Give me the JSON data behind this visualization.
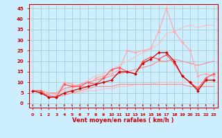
{
  "bg_color": "#cceeff",
  "grid_color": "#aacccc",
  "xlabel": "Vent moyen/en rafales ( km/h )",
  "x": [
    0,
    1,
    2,
    3,
    4,
    5,
    6,
    7,
    8,
    9,
    10,
    11,
    12,
    13,
    14,
    15,
    16,
    17,
    18,
    19,
    20,
    21,
    22,
    23
  ],
  "ylim": [
    -2,
    47
  ],
  "xlim": [
    -0.5,
    23.5
  ],
  "series": [
    {
      "y": [
        6,
        6,
        5,
        5,
        6,
        7,
        9,
        11,
        13,
        14,
        16,
        18,
        20,
        22,
        24,
        26,
        28,
        33,
        34,
        36,
        37,
        36,
        37,
        37
      ],
      "color": "#ffbbbb",
      "lw": 0.8,
      "marker": null,
      "ms": 0
    },
    {
      "y": [
        6,
        5,
        4,
        3,
        4,
        5,
        5,
        6,
        6,
        7,
        7,
        8,
        8,
        9,
        9,
        9,
        10,
        10,
        10,
        10,
        10,
        10,
        10,
        10
      ],
      "color": "#ffbbbb",
      "lw": 0.8,
      "marker": null,
      "ms": 0
    },
    {
      "y": [
        6,
        6,
        5,
        5,
        7,
        8,
        9,
        10,
        11,
        12,
        13,
        14,
        15,
        16,
        17,
        18,
        20,
        20,
        21,
        20,
        19,
        18,
        19,
        20
      ],
      "color": "#ff8888",
      "lw": 0.8,
      "marker": null,
      "ms": 0
    },
    {
      "y": [
        6,
        5,
        4,
        3,
        4,
        5,
        6,
        7,
        8,
        8,
        8,
        9,
        9,
        9,
        9,
        9,
        9,
        9,
        9,
        9,
        8,
        8,
        8,
        8
      ],
      "color": "#ff8888",
      "lw": 0.8,
      "marker": null,
      "ms": 0
    },
    {
      "y": [
        6,
        6,
        5,
        4,
        10,
        9,
        8,
        8,
        12,
        13,
        14,
        16,
        25,
        24,
        25,
        26,
        34,
        45,
        34,
        29,
        25,
        13,
        14,
        13
      ],
      "color": "#ffaaaa",
      "lw": 0.9,
      "marker": "D",
      "ms": 2.0
    },
    {
      "y": [
        6,
        6,
        3,
        3,
        9,
        8,
        8,
        10,
        9,
        12,
        16,
        17,
        15,
        14,
        20,
        22,
        21,
        23,
        19,
        13,
        10,
        7,
        12,
        14
      ],
      "color": "#ff5555",
      "lw": 0.9,
      "marker": "D",
      "ms": 2.0
    },
    {
      "y": [
        6,
        5,
        3,
        3,
        5,
        6,
        7,
        8,
        9,
        10,
        11,
        15,
        15,
        14,
        19,
        21,
        24,
        24,
        20,
        13,
        10,
        6,
        11,
        11
      ],
      "color": "#cc0000",
      "lw": 0.9,
      "marker": "D",
      "ms": 2.0
    }
  ],
  "yticks": [
    0,
    5,
    10,
    15,
    20,
    25,
    30,
    35,
    40,
    45
  ],
  "xticks": [
    0,
    1,
    2,
    3,
    4,
    5,
    6,
    7,
    8,
    9,
    10,
    11,
    12,
    13,
    14,
    15,
    16,
    17,
    18,
    19,
    20,
    21,
    22,
    23
  ],
  "tick_color": "#cc0000",
  "spine_color": "#cc0000",
  "xlabel_color": "#cc0000",
  "xlabel_fontsize": 6.0,
  "tick_fontsize": 4.5,
  "ytick_fontsize": 5.0
}
